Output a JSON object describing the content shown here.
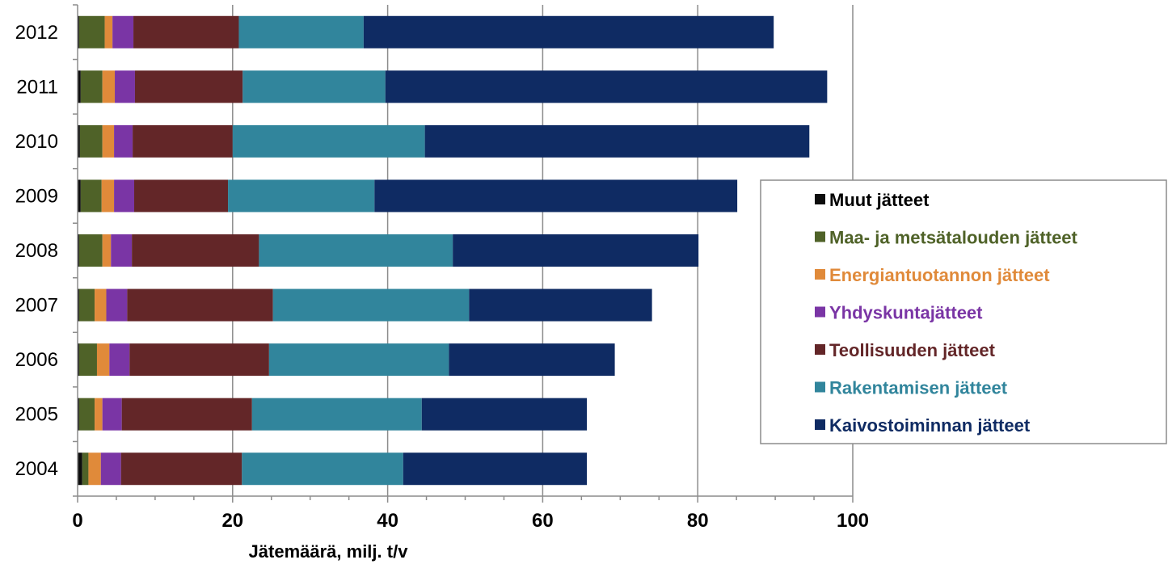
{
  "chart_data": {
    "type": "bar",
    "orientation": "horizontal",
    "stacked": true,
    "categories": [
      "2012",
      "2011",
      "2010",
      "2009",
      "2008",
      "2007",
      "2006",
      "2005",
      "2004"
    ],
    "xlabel": "Jätemäärä, milj. t/v",
    "ylabel": "",
    "xlim": [
      0,
      100
    ],
    "x_ticks": [
      0,
      20,
      40,
      60,
      80,
      100
    ],
    "grid": "vertical major gridlines",
    "legend_position": "right",
    "series": [
      {
        "name": "Muut jätteet",
        "color": "#0d0d0d",
        "values": [
          0.2,
          0.4,
          0.3,
          0.4,
          0.2,
          0.2,
          0.2,
          0.2,
          0.6
        ]
      },
      {
        "name": "Maa- ja metsätalouden jätteet",
        "color": "#4f6228",
        "values": [
          3.3,
          2.8,
          2.9,
          2.7,
          3.0,
          2.0,
          2.3,
          2.0,
          0.8
        ]
      },
      {
        "name": "Energiantuotannon jätteet",
        "color": "#e08a3a",
        "values": [
          1.0,
          1.6,
          1.5,
          1.6,
          1.1,
          1.5,
          1.6,
          1.0,
          1.6
        ]
      },
      {
        "name": "Yhdyskuntajätteet",
        "color": "#7a35a5",
        "values": [
          2.7,
          2.6,
          2.4,
          2.6,
          2.7,
          2.7,
          2.6,
          2.5,
          2.6
        ]
      },
      {
        "name": "Teollisuuden jätteet",
        "color": "#632628",
        "values": [
          13.6,
          13.9,
          12.9,
          12.1,
          16.4,
          18.8,
          18.0,
          16.8,
          15.6
        ]
      },
      {
        "name": "Rakentamisen jätteet",
        "color": "#31859c",
        "values": [
          16.1,
          18.4,
          24.8,
          18.9,
          25.0,
          25.3,
          23.2,
          21.9,
          20.8
        ]
      },
      {
        "name": "Kaivostoiminnan jätteet",
        "color": "#0f2b63",
        "values": [
          52.9,
          57.0,
          49.6,
          46.8,
          31.7,
          23.6,
          21.4,
          21.3,
          23.7
        ]
      }
    ]
  }
}
